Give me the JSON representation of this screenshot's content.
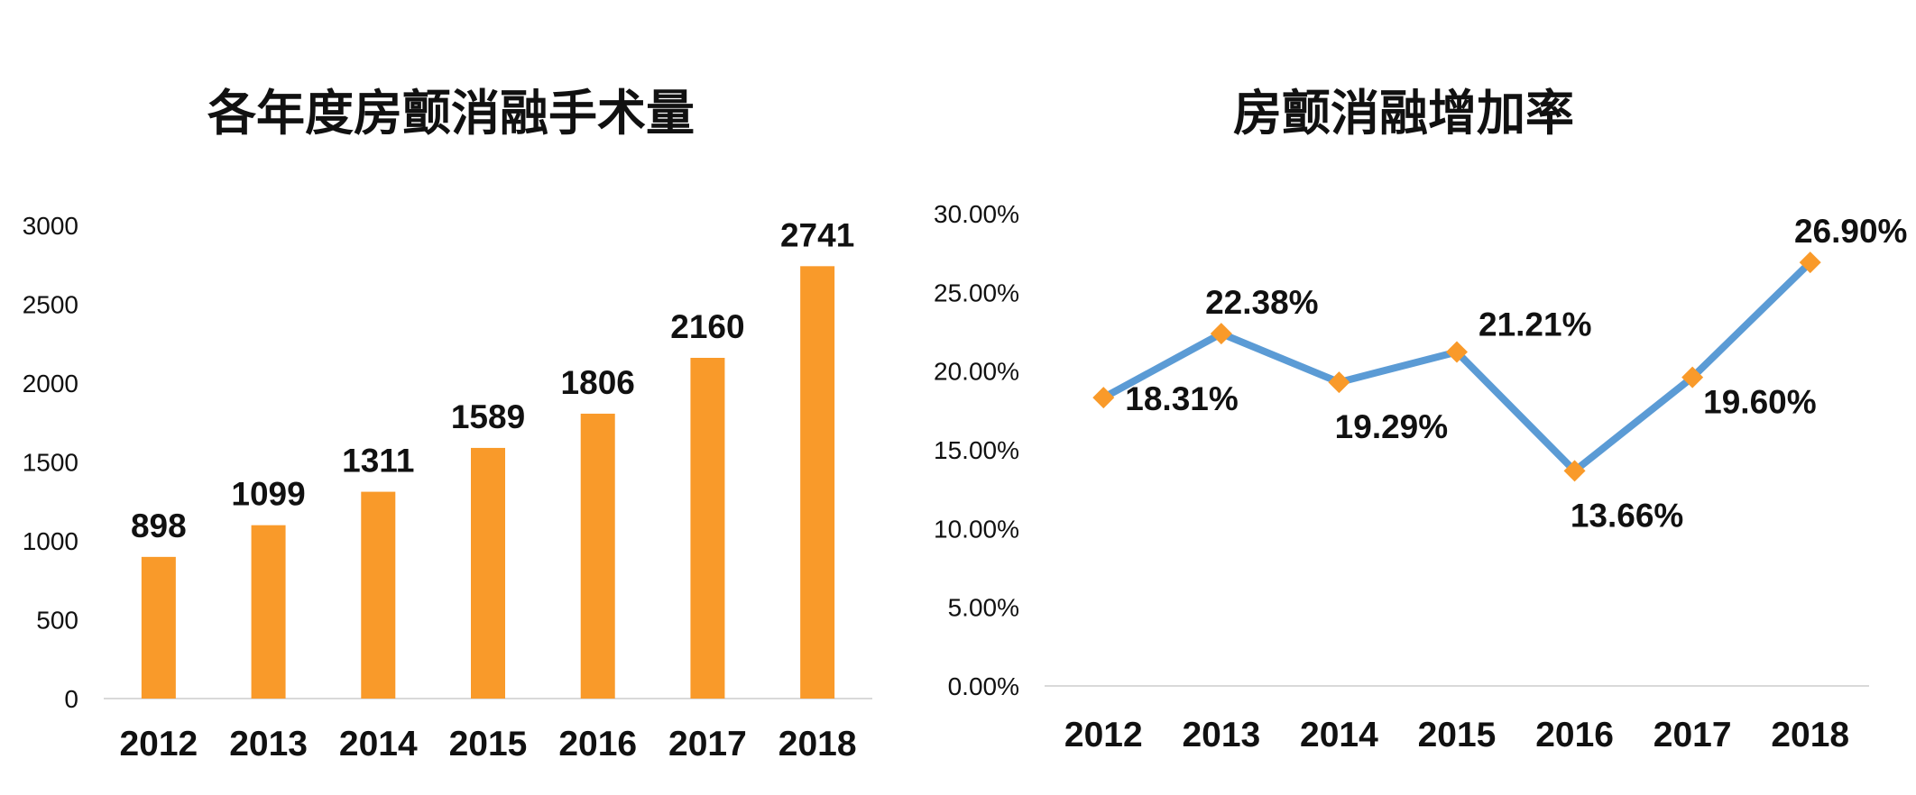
{
  "chart_data": [
    {
      "type": "bar",
      "title": "各年度房颤消融手术量",
      "categories": [
        "2012",
        "2013",
        "2014",
        "2015",
        "2016",
        "2017",
        "2018"
      ],
      "values": [
        898,
        1099,
        1311,
        1589,
        1806,
        2160,
        2741
      ],
      "data_labels": [
        "898",
        "1099",
        "1311",
        "1589",
        "1806",
        "2160",
        "2741"
      ],
      "ylim": [
        0,
        3000
      ],
      "yticks": [
        0,
        500,
        1000,
        1500,
        2000,
        2500,
        3000
      ],
      "ytick_labels": [
        "0",
        "500",
        "1000",
        "1500",
        "2000",
        "2500",
        "3000"
      ],
      "xlabel": "",
      "ylabel": "",
      "grid": false,
      "legend": "none",
      "color": "#F99A2A",
      "axis_color": "#D9D9D9"
    },
    {
      "type": "line",
      "title": "房颤消融增加率",
      "categories": [
        "2012",
        "2013",
        "2014",
        "2015",
        "2016",
        "2017",
        "2018"
      ],
      "values": [
        18.31,
        22.38,
        19.29,
        21.21,
        13.66,
        19.6,
        26.9
      ],
      "data_labels": [
        "18.31%",
        "22.38%",
        "19.29%",
        "21.21%",
        "13.66%",
        "19.60%",
        "26.90%"
      ],
      "label_positions": [
        "right",
        "above",
        "below",
        "right",
        "below",
        "right",
        "above"
      ],
      "ylim": [
        0,
        30
      ],
      "yticks": [
        0,
        5,
        10,
        15,
        20,
        25,
        30
      ],
      "ytick_labels": [
        "0.00%",
        "5.00%",
        "10.00%",
        "15.00%",
        "20.00%",
        "25.00%",
        "30.00%"
      ],
      "xlabel": "",
      "ylabel": "",
      "grid": false,
      "legend": "none",
      "line_color": "#5B9BD5",
      "marker_color": "#F99A2A",
      "axis_color": "#D9D9D9"
    }
  ]
}
